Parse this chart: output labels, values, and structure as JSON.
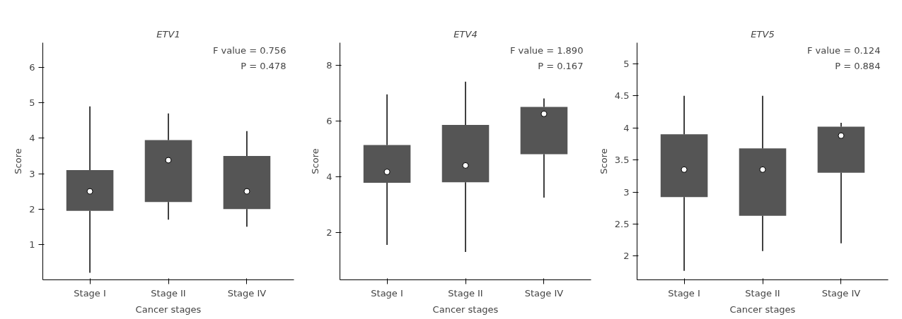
{
  "chart_data": [
    {
      "type": "box",
      "title": "ETV1",
      "xlabel": "Cancer stages",
      "ylabel": "Score",
      "categories": [
        "Stage I",
        "Stage II",
        "Stage IV"
      ],
      "color": "#555555",
      "ylim": [
        0,
        6.7
      ],
      "yticks": [
        1,
        2,
        3,
        4,
        5,
        6
      ],
      "grid": false,
      "annotations": [
        "F value = 0.756",
        "P = 0.478"
      ],
      "boxes": [
        {
          "low": 0.2,
          "q1": 1.95,
          "median": 2.5,
          "q3": 3.1,
          "high": 4.9
        },
        {
          "low": 1.7,
          "q1": 2.2,
          "median": 3.38,
          "q3": 3.95,
          "high": 4.7
        },
        {
          "low": 1.5,
          "q1": 2.0,
          "median": 2.5,
          "q3": 3.5,
          "high": 4.2
        }
      ]
    },
    {
      "type": "box",
      "title": "ETV4",
      "xlabel": "Cancer stages",
      "ylabel": "Score",
      "categories": [
        "Stage I",
        "Stage II",
        "Stage IV"
      ],
      "color": "#555555",
      "ylim": [
        0.3,
        8.8
      ],
      "yticks": [
        2,
        4,
        6,
        8
      ],
      "grid": false,
      "annotations": [
        "F value = 1.890",
        "P = 0.167"
      ],
      "boxes": [
        {
          "low": 1.55,
          "q1": 3.78,
          "median": 4.17,
          "q3": 5.13,
          "high": 6.95
        },
        {
          "low": 1.3,
          "q1": 3.8,
          "median": 4.4,
          "q3": 5.85,
          "high": 7.4
        },
        {
          "low": 3.25,
          "q1": 4.8,
          "median": 6.25,
          "q3": 6.5,
          "high": 6.8
        }
      ]
    },
    {
      "type": "box",
      "title": "ETV5",
      "xlabel": "Cancer stages",
      "ylabel": "Score",
      "categories": [
        "Stage I",
        "Stage II",
        "Stage IV"
      ],
      "color": "#555555",
      "ylim": [
        1.63,
        5.33
      ],
      "yticks": [
        2,
        2.5,
        3,
        3.5,
        4,
        4.5,
        5
      ],
      "grid": false,
      "annotations": [
        "F value = 0.124",
        "P = 0.884"
      ],
      "boxes": [
        {
          "low": 1.77,
          "q1": 2.92,
          "median": 3.35,
          "q3": 3.9,
          "high": 4.5
        },
        {
          "low": 2.08,
          "q1": 2.63,
          "median": 3.35,
          "q3": 3.68,
          "high": 4.5
        },
        {
          "low": 2.2,
          "q1": 3.3,
          "median": 3.88,
          "q3": 4.02,
          "high": 4.08
        }
      ]
    }
  ]
}
